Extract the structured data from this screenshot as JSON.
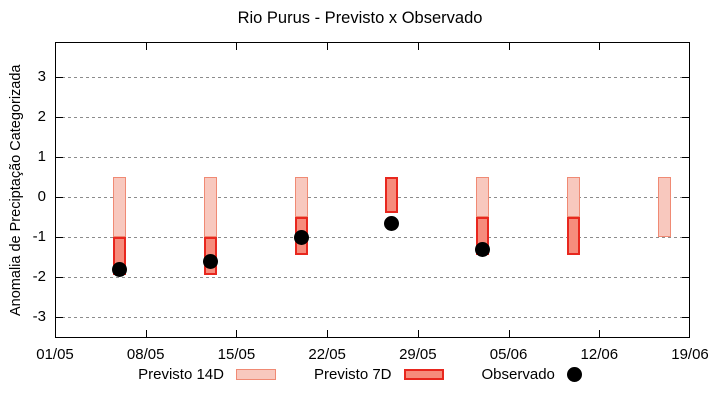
{
  "title": "Rio Purus - Previsto x Observado",
  "axes": {
    "y_label": "Anomalia de Preciptação Categorizada",
    "y_ticks": [
      {
        "label": "3",
        "value": 3
      },
      {
        "label": "2",
        "value": 2
      },
      {
        "label": "1",
        "value": 1
      },
      {
        "label": "0",
        "value": 0
      },
      {
        "label": "-1",
        "value": -1
      },
      {
        "label": "-2",
        "value": -2
      },
      {
        "label": "-3",
        "value": -3
      }
    ],
    "x_ticks": [
      {
        "label": "01/05",
        "day": 0
      },
      {
        "label": "08/05",
        "day": 7
      },
      {
        "label": "15/05",
        "day": 14
      },
      {
        "label": "22/05",
        "day": 21
      },
      {
        "label": "29/05",
        "day": 28
      },
      {
        "label": "05/06",
        "day": 35
      },
      {
        "label": "12/06",
        "day": 42
      },
      {
        "label": "19/06",
        "day": 49
      }
    ]
  },
  "legend": {
    "items": [
      {
        "label": "Previsto 14D",
        "swatch": "box",
        "fill": "#f8c8be",
        "border": "#f08a74"
      },
      {
        "label": "Previsto 7D",
        "swatch": "box",
        "fill": "#f68c7c",
        "border": "#e8271e"
      },
      {
        "label": "Observado",
        "swatch": "dot",
        "fill": "#000000",
        "border": "#000000"
      }
    ]
  },
  "chart_data": {
    "type": "bar",
    "title": "Rio Purus - Previsto x Observado",
    "xlabel": "",
    "ylabel": "Anomalia de Preciptação Categorizada",
    "ylim": [
      -3.5,
      3.9
    ],
    "xlim_days": [
      0,
      49
    ],
    "grid": "horizontal-dashed",
    "legend_position": "bottom-center",
    "x_tick_labels": [
      "01/05",
      "08/05",
      "15/05",
      "22/05",
      "29/05",
      "05/06",
      "12/06",
      "19/06"
    ],
    "categories": [
      "06/05",
      "13/05",
      "20/05",
      "27/05",
      "03/06",
      "10/06",
      "17/06"
    ],
    "category_days": [
      5,
      12,
      19,
      26,
      33,
      40,
      47
    ],
    "series": [
      {
        "name": "Previsto 14D",
        "type": "range-bar",
        "fill": "#f8c8be",
        "border": "#f08a74",
        "ranges": [
          [
            -1.0,
            0.5
          ],
          [
            -1.0,
            0.5
          ],
          [
            -0.5,
            0.5
          ],
          null,
          [
            -0.5,
            0.5
          ],
          [
            -0.5,
            0.5
          ],
          [
            -1.0,
            0.5
          ]
        ]
      },
      {
        "name": "Previsto 7D",
        "type": "range-bar",
        "fill": "#f68c7c",
        "border": "#e8271e",
        "ranges": [
          [
            -1.95,
            -1.0
          ],
          [
            -1.95,
            -1.0
          ],
          [
            -1.45,
            -0.5
          ],
          [
            -0.4,
            0.5
          ],
          [
            -1.45,
            -0.5
          ],
          [
            -1.45,
            -0.5
          ],
          null
        ]
      },
      {
        "name": "Observado",
        "type": "scatter",
        "color": "#000000",
        "values": [
          -1.8,
          -1.6,
          -1.0,
          -0.65,
          -1.3,
          null,
          null
        ]
      }
    ]
  }
}
